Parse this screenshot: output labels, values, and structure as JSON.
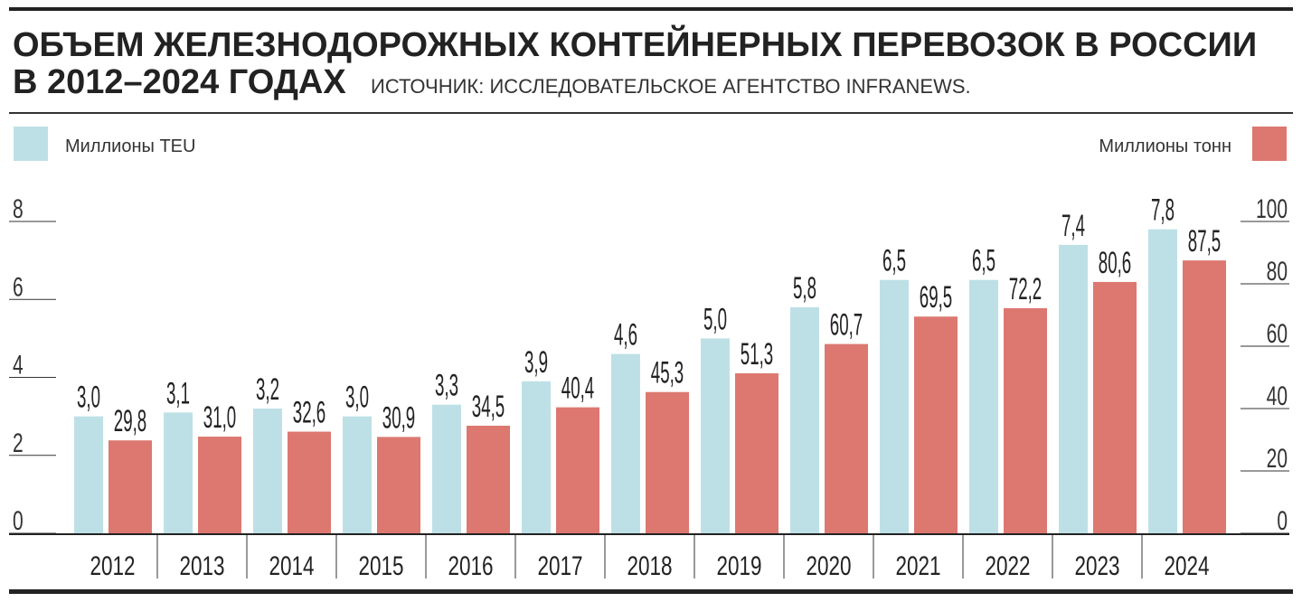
{
  "chart_data": {
    "type": "bar",
    "title": "ОБЪЕМ ЖЕЛЕЗНОДОРОЖНЫХ КОНТЕЙНЕРНЫХ ПЕРЕВОЗОК В РОССИИ",
    "subtitle": "В 2012–2024 ГОДАХ",
    "source": "ИСТОЧНИК: ИССЛЕДОВАТЕЛЬСКОЕ АГЕНТСТВО INFRANEWS.",
    "categories": [
      "2012",
      "2013",
      "2014",
      "2015",
      "2016",
      "2017",
      "2018",
      "2019",
      "2020",
      "2021",
      "2022",
      "2023",
      "2024"
    ],
    "series": [
      {
        "name": "Миллионы TEU",
        "color": "#bde0e6",
        "values": [
          3.0,
          3.1,
          3.2,
          3.0,
          3.3,
          3.9,
          4.6,
          5.0,
          5.8,
          6.5,
          6.5,
          7.4,
          7.8
        ],
        "value_labels": [
          "3,0",
          "3,1",
          "3,2",
          "3,0",
          "3,3",
          "3,9",
          "4,6",
          "5,0",
          "5,8",
          "6,5",
          "6,5",
          "7,4",
          "7,8"
        ]
      },
      {
        "name": "Миллионы тонн",
        "color": "#dc7870",
        "axis": "y2",
        "values": [
          29.8,
          31.0,
          32.6,
          30.9,
          34.5,
          40.4,
          45.3,
          51.3,
          60.7,
          69.5,
          72.2,
          80.6,
          87.5
        ],
        "value_labels": [
          "29,8",
          "31,0",
          "32,6",
          "30,9",
          "34,5",
          "40,4",
          "45,3",
          "51,3",
          "60,7",
          "69,5",
          "72,2",
          "80,6",
          "87,5"
        ]
      }
    ],
    "ylim": [
      0,
      8
    ],
    "yticks": [
      0,
      2,
      4,
      6,
      8
    ],
    "y2lim": [
      0,
      100
    ],
    "y2ticks": [
      0,
      20,
      40,
      60,
      80,
      100
    ]
  }
}
